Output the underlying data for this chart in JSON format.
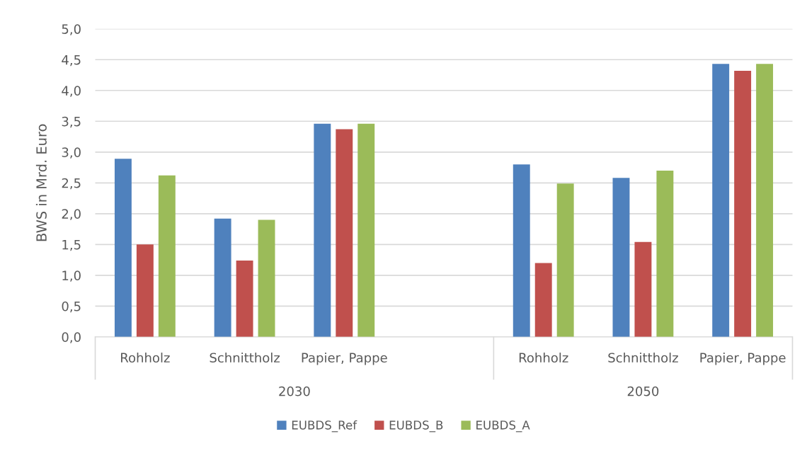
{
  "chart_data": {
    "type": "bar",
    "ylabel": "BWS in Mrd. Euro",
    "categories": [
      "Rohholz",
      "Schnittholz",
      "Papier, Pappe",
      null,
      "Rohholz",
      "Schnittholz",
      "Papier, Pappe"
    ],
    "series": [
      {
        "name": "EUBDS_Ref",
        "color": "#4f81bd",
        "values": [
          2.89,
          1.92,
          3.46,
          null,
          2.8,
          2.58,
          4.43
        ]
      },
      {
        "name": "EUBDS_B",
        "color": "#c0504d",
        "values": [
          1.5,
          1.24,
          3.37,
          null,
          1.2,
          1.54,
          4.32
        ]
      },
      {
        "name": "EUBDS_A",
        "color": "#9bbb59",
        "values": [
          2.62,
          1.9,
          3.46,
          null,
          2.49,
          2.7,
          4.43
        ]
      }
    ],
    "annotations": [
      "2030",
      "2050"
    ],
    "ylim": [
      0,
      5
    ],
    "yticks": [
      {
        "value": 0,
        "label": "0,0"
      },
      {
        "value": 0.5,
        "label": "0,5"
      },
      {
        "value": 1,
        "label": "1,0"
      },
      {
        "value": 1.5,
        "label": "1,5"
      },
      {
        "value": 2,
        "label": "2,0"
      },
      {
        "value": 2.5,
        "label": "2,5"
      },
      {
        "value": 3,
        "label": "3,0"
      },
      {
        "value": 3.5,
        "label": "3,5"
      },
      {
        "value": 4,
        "label": "4,0"
      },
      {
        "value": 4.5,
        "label": "4,5"
      },
      {
        "value": 5,
        "label": "5,0"
      }
    ],
    "grid": "y",
    "legend": "bottom"
  }
}
